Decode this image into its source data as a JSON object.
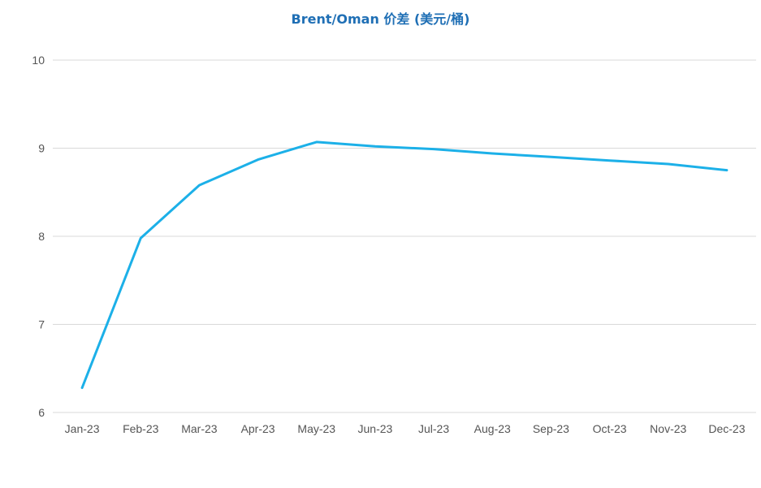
{
  "chart_data": {
    "type": "line",
    "title": "Brent/Oman 价差 (美元/桶)",
    "xlabel": "",
    "ylabel": "",
    "categories": [
      "Jan-23",
      "Feb-23",
      "Mar-23",
      "Apr-23",
      "May-23",
      "Jun-23",
      "Jul-23",
      "Aug-23",
      "Sep-23",
      "Oct-23",
      "Nov-23",
      "Dec-23"
    ],
    "series": [
      {
        "values": [
          6.28,
          7.98,
          8.58,
          8.87,
          9.07,
          9.02,
          8.99,
          8.94,
          8.9,
          8.86,
          8.82,
          8.75
        ]
      }
    ],
    "ylim": [
      6,
      10
    ],
    "yticks": [
      6,
      7,
      8,
      9,
      10
    ],
    "grid": true,
    "legend": "none",
    "colors": {
      "line": "#1cb0e8",
      "title": "#1f6fb5",
      "grid": "#d9d9d9",
      "tick_text": "#555555"
    }
  }
}
